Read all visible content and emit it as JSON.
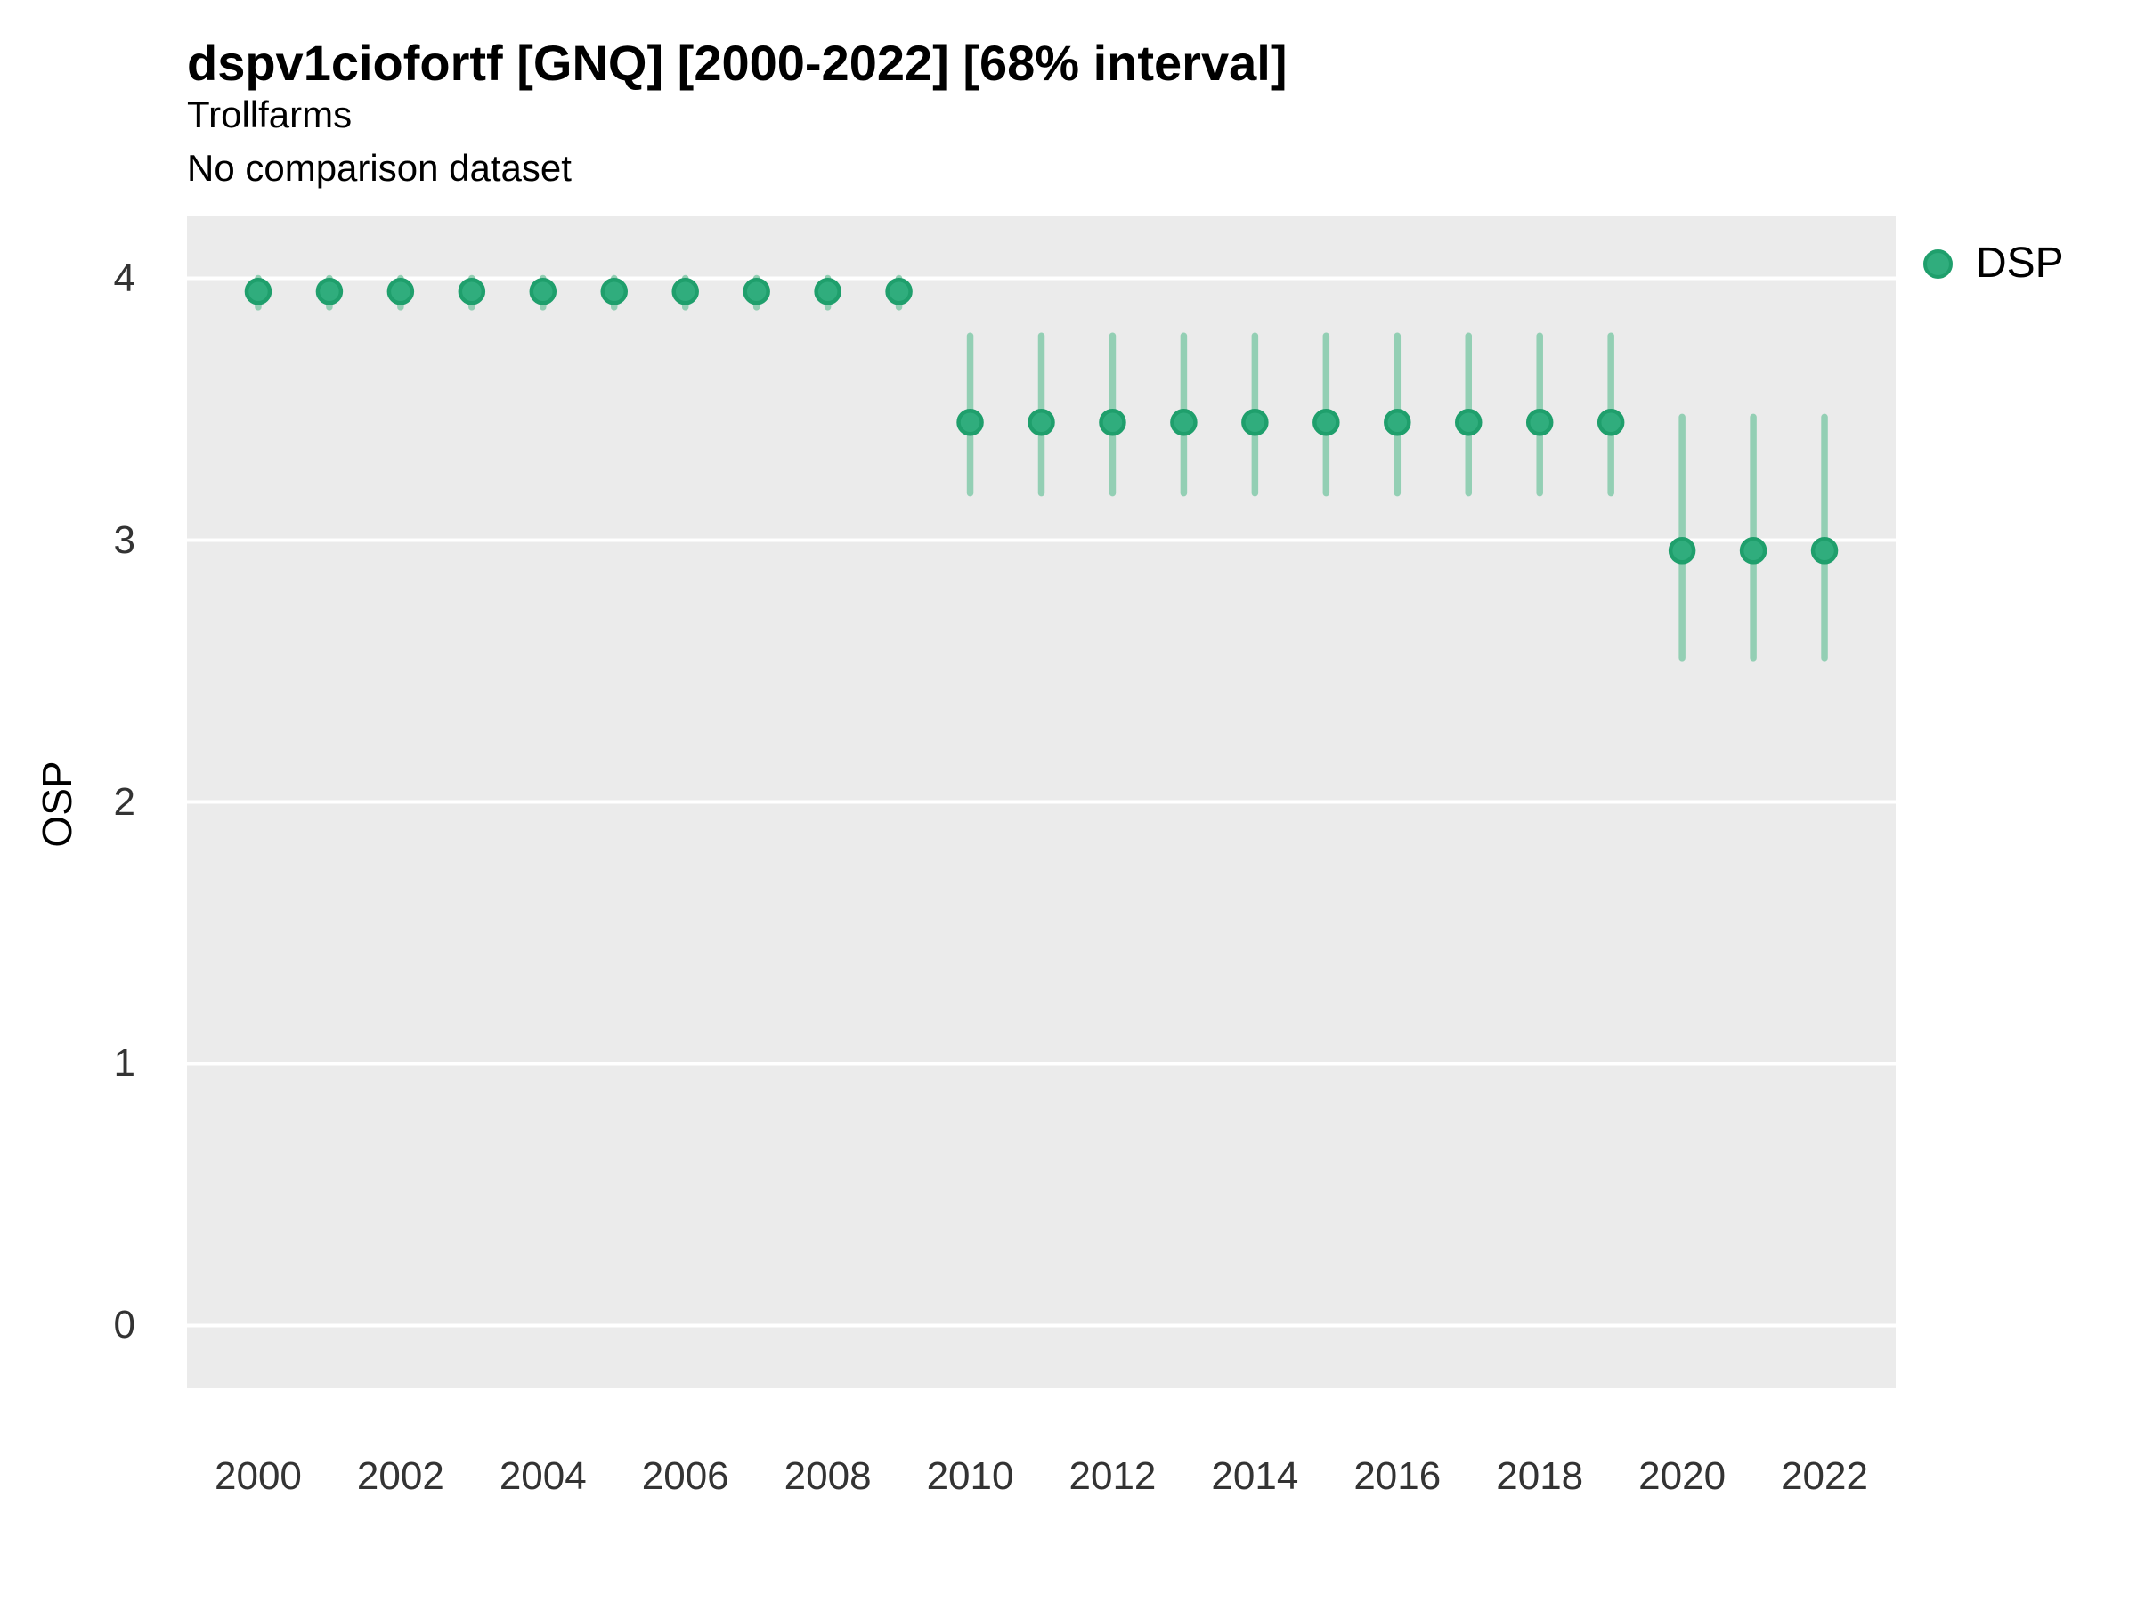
{
  "header": {
    "title": "dspv1ciofortf [GNQ] [2000-2022] [68% interval]",
    "subtitle": "Trollfarms",
    "comparison_note": "No comparison dataset"
  },
  "legend": {
    "position": "right-top",
    "items": [
      {
        "label": "DSP",
        "marker": "circle-icon",
        "color": "#30AD7D"
      }
    ]
  },
  "colors": {
    "point": "#30AD7D",
    "point_border": "#1F9F6C",
    "interval_bar": "#93CFB4",
    "panel_background": "#EBEBEB",
    "gridline": "#FFFFFF",
    "title_text": "#000000",
    "tick_text": "#333333"
  },
  "chart_data": {
    "type": "scatter",
    "title": "dspv1ciofortf [GNQ] [2000-2022] [68% interval]",
    "subtitle": "Trollfarms",
    "comparison_note": "No comparison dataset",
    "xlabel": "",
    "ylabel": "OSP",
    "interval_label": "68% interval",
    "grid": "major-horizontal-only",
    "legend_position": "right-top",
    "xlim": [
      1999,
      2023
    ],
    "ylim": [
      -0.24,
      4.24
    ],
    "x_ticks": [
      2000,
      2002,
      2004,
      2006,
      2008,
      2010,
      2012,
      2014,
      2016,
      2018,
      2020,
      2022
    ],
    "y_ticks": [
      4,
      3,
      2,
      1,
      0
    ],
    "series": [
      {
        "name": "DSP",
        "x": [
          2000,
          2001,
          2002,
          2003,
          2004,
          2005,
          2006,
          2007,
          2008,
          2009,
          2010,
          2011,
          2012,
          2013,
          2014,
          2015,
          2016,
          2017,
          2018,
          2019,
          2020,
          2021,
          2022
        ],
        "y": [
          3.95,
          3.95,
          3.95,
          3.95,
          3.95,
          3.95,
          3.95,
          3.95,
          3.95,
          3.95,
          3.45,
          3.45,
          3.45,
          3.45,
          3.45,
          3.45,
          3.45,
          3.45,
          3.45,
          3.45,
          2.96,
          2.96,
          2.96
        ],
        "y_lo": [
          3.89,
          3.89,
          3.89,
          3.89,
          3.89,
          3.89,
          3.89,
          3.89,
          3.89,
          3.89,
          3.18,
          3.18,
          3.18,
          3.18,
          3.18,
          3.18,
          3.18,
          3.18,
          3.18,
          3.18,
          2.55,
          2.55,
          2.55
        ],
        "y_hi": [
          4.0,
          4.0,
          4.0,
          4.0,
          4.0,
          4.0,
          4.0,
          4.0,
          4.0,
          4.0,
          3.78,
          3.78,
          3.78,
          3.78,
          3.78,
          3.78,
          3.78,
          3.78,
          3.78,
          3.78,
          3.47,
          3.47,
          3.47
        ]
      }
    ]
  }
}
